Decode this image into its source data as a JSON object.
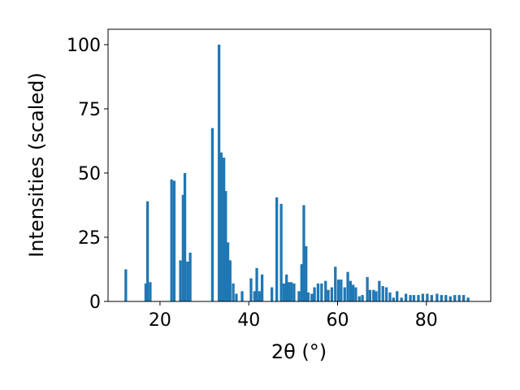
{
  "chart_data": {
    "type": "bar",
    "title": "",
    "xlabel": "2θ (°)",
    "ylabel": "Intensities (scaled)",
    "xlim": [
      8.3,
      94.5
    ],
    "ylim": [
      0,
      106
    ],
    "xticks": [
      20,
      40,
      60,
      80
    ],
    "yticks": [
      0,
      25,
      50,
      75,
      100
    ],
    "grid": false,
    "bar_color": "#1f77b4",
    "bar_width": 0.6,
    "x": [
      12.3,
      16.8,
      17.2,
      17.8,
      22.6,
      23.2,
      24.6,
      25.2,
      25.6,
      26.2,
      26.8,
      31.8,
      33.3,
      33.8,
      34.4,
      34.8,
      35.3,
      35.8,
      36.5,
      37.2,
      38.5,
      40.5,
      41.3,
      41.8,
      42.4,
      43.0,
      45.2,
      46.3,
      47.3,
      47.9,
      48.5,
      49.0,
      49.6,
      50.2,
      51.3,
      51.9,
      52.4,
      52.9,
      53.4,
      54.2,
      54.8,
      55.6,
      56.4,
      57.3,
      57.9,
      58.7,
      59.5,
      60.2,
      60.8,
      61.6,
      62.3,
      62.9,
      63.5,
      64.1,
      64.9,
      65.6,
      66.7,
      67.3,
      68.1,
      68.7,
      69.4,
      70.2,
      71.0,
      71.8,
      72.6,
      73.4,
      74.4,
      75.4,
      76.4,
      77.2,
      78.2,
      79.2,
      80.2,
      81.2,
      82.4,
      83.4,
      84.4,
      85.4,
      86.4,
      87.4,
      88.4,
      89.4
    ],
    "values": [
      12.5,
      7.0,
      39.0,
      7.5,
      47.5,
      47.0,
      16.0,
      41.5,
      50.0,
      15.5,
      19.0,
      67.5,
      100.0,
      58.0,
      56.0,
      43.0,
      23.0,
      16.0,
      7.0,
      3.0,
      4.0,
      9.0,
      4.0,
      13.0,
      4.0,
      10.5,
      5.5,
      40.5,
      38.0,
      7.0,
      10.5,
      7.5,
      7.5,
      7.0,
      4.0,
      14.5,
      37.5,
      21.5,
      3.5,
      3.0,
      5.5,
      7.0,
      7.0,
      8.0,
      4.5,
      5.5,
      13.5,
      8.5,
      8.5,
      5.5,
      11.5,
      8.0,
      6.5,
      5.5,
      2.0,
      2.5,
      9.5,
      4.5,
      4.5,
      4.0,
      8.0,
      6.0,
      5.5,
      3.5,
      1.5,
      4.0,
      1.5,
      3.0,
      2.5,
      2.5,
      2.5,
      3.0,
      3.0,
      2.5,
      3.0,
      2.5,
      2.5,
      2.0,
      2.5,
      2.5,
      2.5,
      1.5
    ]
  }
}
